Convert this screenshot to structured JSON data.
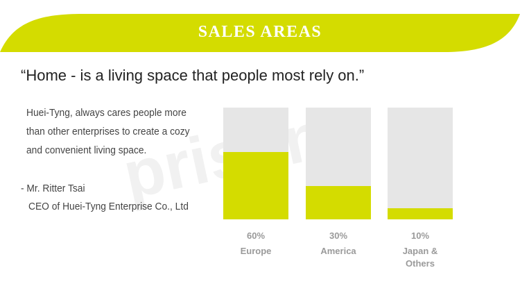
{
  "header": {
    "title": "SALES AREAS"
  },
  "quote": "“Home - is a living space that people most rely on.”",
  "body": [
    "Huei-Tyng, always cares people more",
    "than other enterprises to create a cozy",
    "and convenient living space."
  ],
  "signature": [
    "- Mr. Ritter Tsai",
    "CEO of Huei-Tyng Enterprise Co., Ltd"
  ],
  "watermark": "pristine",
  "chart_data": {
    "type": "bar",
    "categories": [
      "Europe",
      "America",
      "Japan & Others"
    ],
    "values": [
      60,
      30,
      10
    ],
    "value_labels": [
      "60%",
      "30%",
      "10%"
    ],
    "ylim": [
      0,
      100
    ],
    "color": "#d4dc00",
    "track_color": "#e6e6e6"
  }
}
